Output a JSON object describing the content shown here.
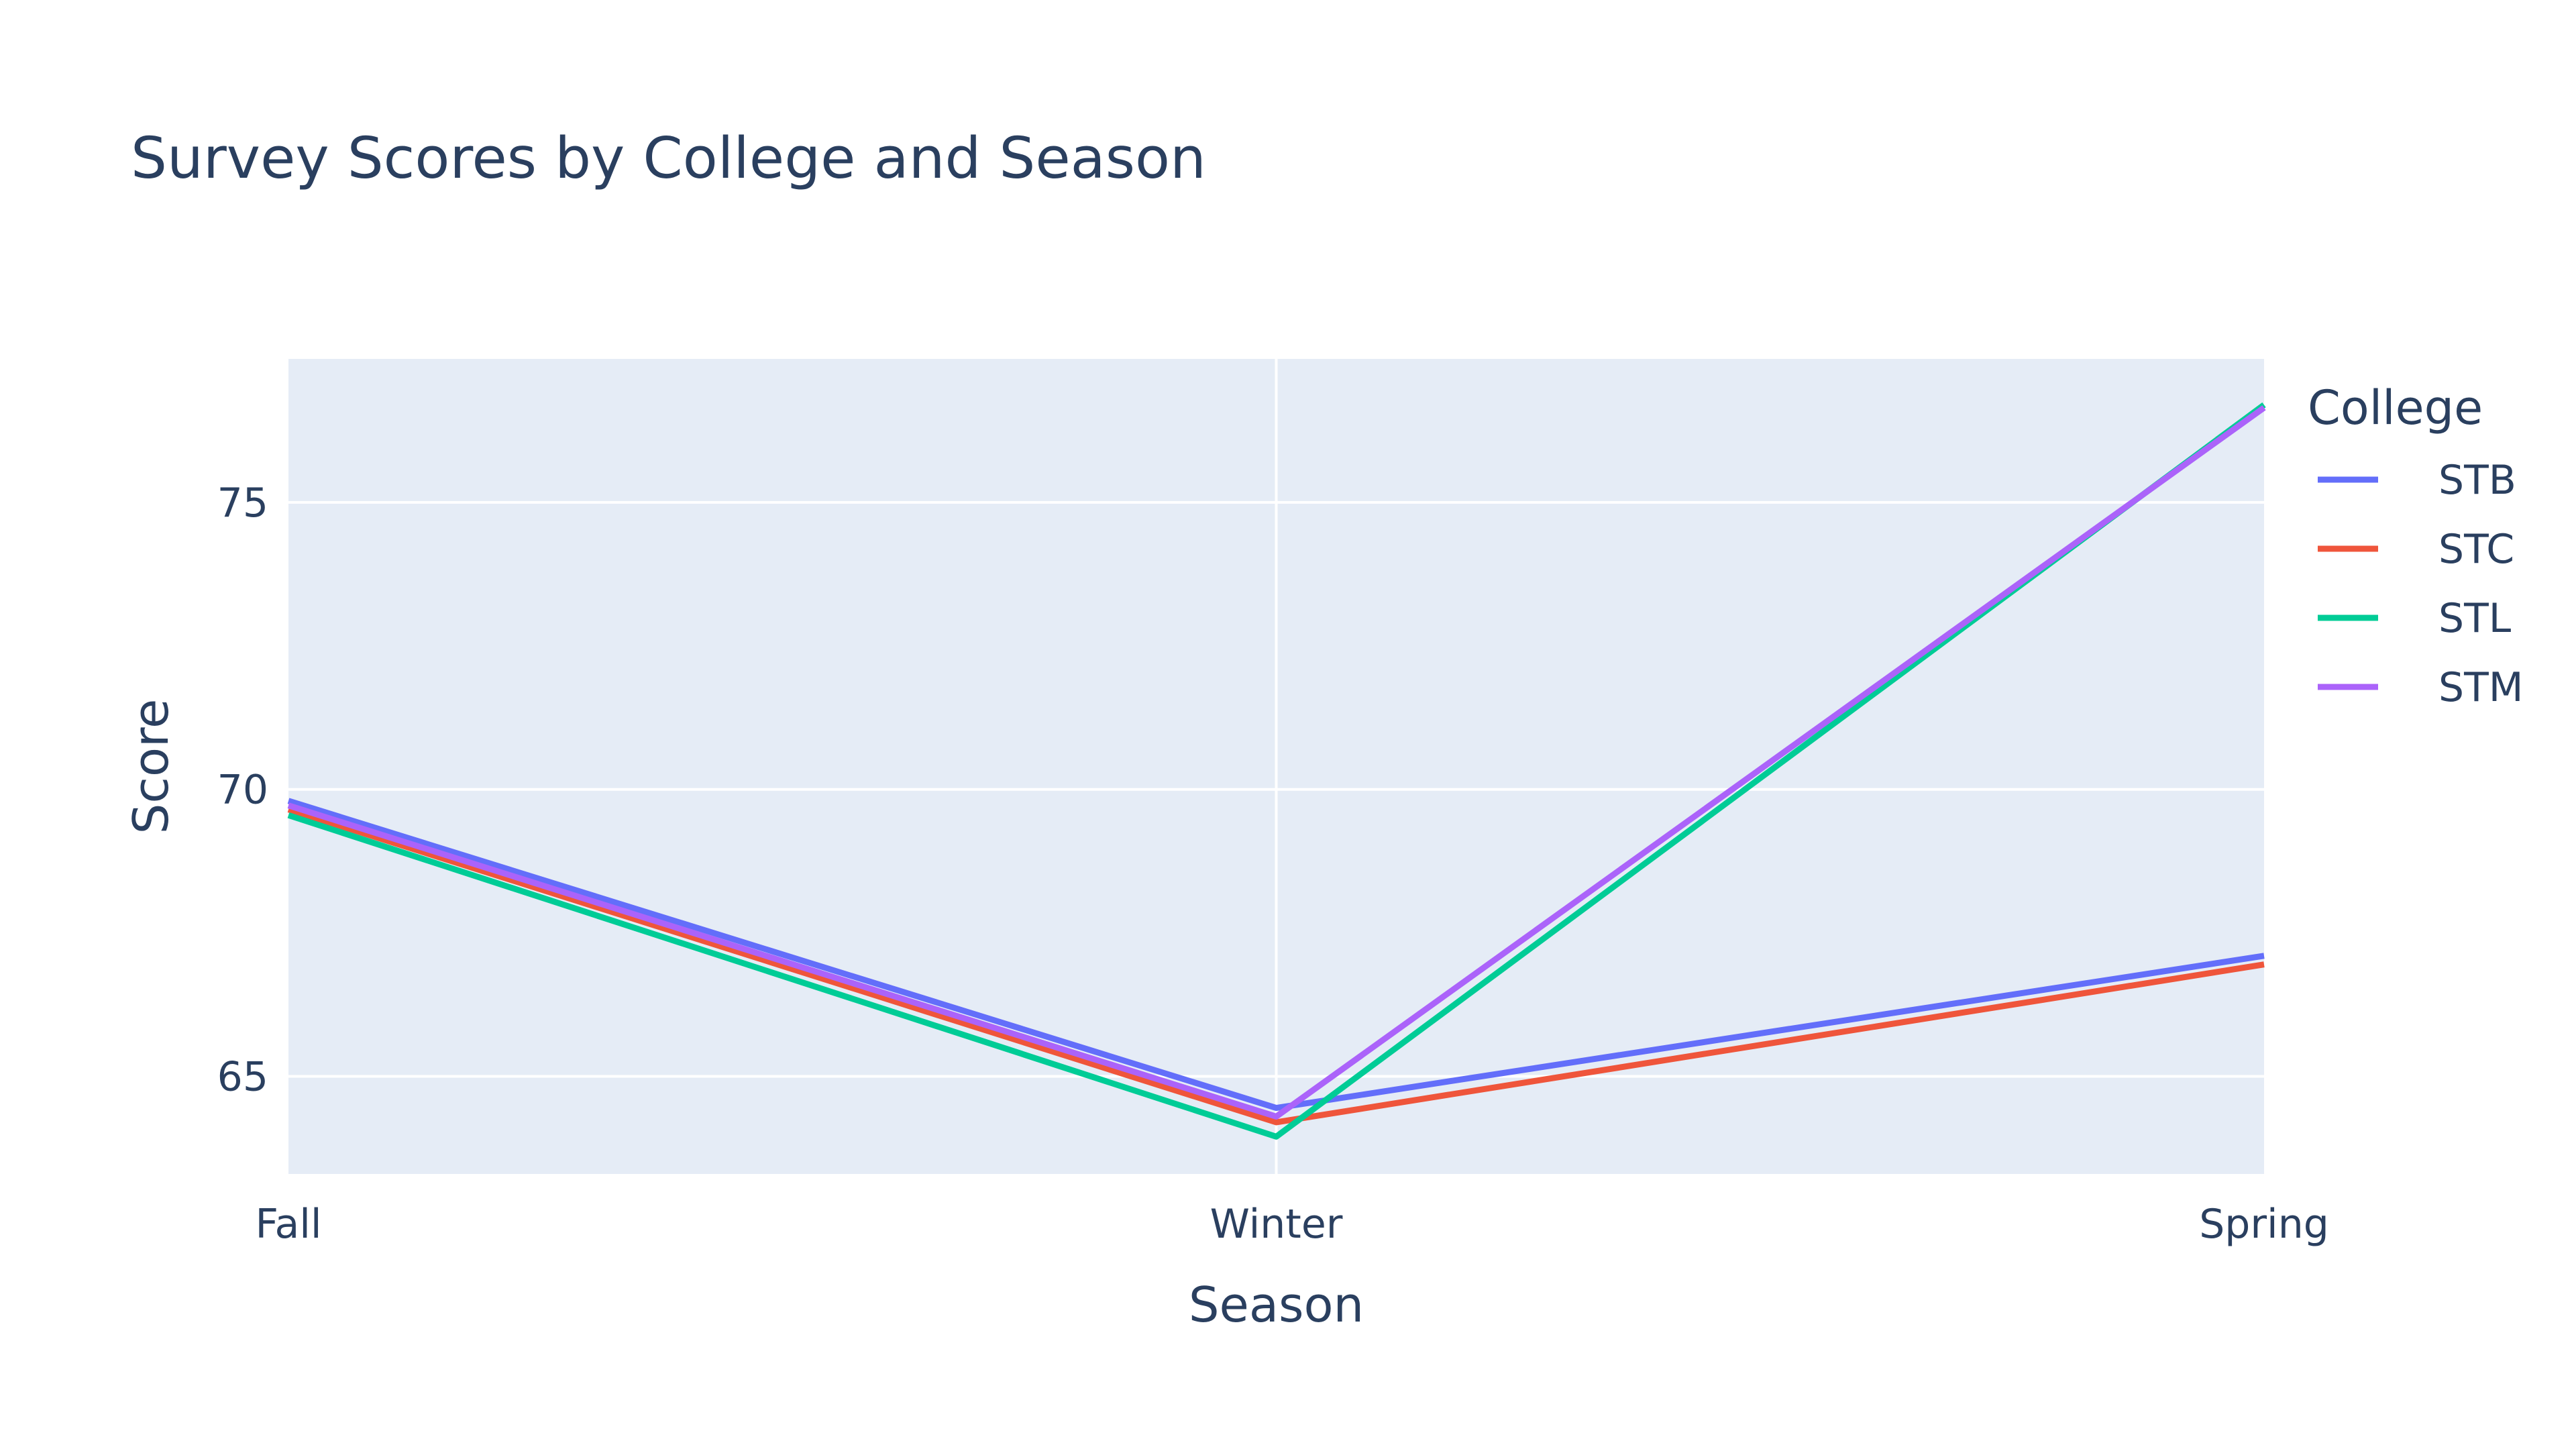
{
  "chart_data": {
    "type": "line",
    "title": "Survey Scores by College and Season",
    "xlabel": "Season",
    "ylabel": "Score",
    "categories": [
      "Fall",
      "Winter",
      "Spring"
    ],
    "ylim": [
      63.3,
      77.5
    ],
    "yticks": [
      65,
      70,
      75
    ],
    "grid": true,
    "legend": {
      "title": "College",
      "placement": "right"
    },
    "series": [
      {
        "name": "STB",
        "color": "#636efa",
        "values": [
          69.8,
          64.45,
          67.1
        ]
      },
      {
        "name": "STC",
        "color": "#ef553b",
        "values": [
          69.65,
          64.2,
          66.95
        ]
      },
      {
        "name": "STL",
        "color": "#00cc96",
        "values": [
          69.55,
          63.95,
          76.7
        ]
      },
      {
        "name": "STM",
        "color": "#ab63fa",
        "values": [
          69.72,
          64.3,
          76.65
        ]
      }
    ]
  }
}
